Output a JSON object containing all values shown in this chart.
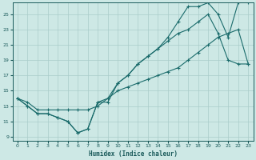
{
  "title": "",
  "xlabel": "Humidex (Indice chaleur)",
  "background_color": "#cde8e5",
  "grid_color": "#aaccca",
  "line_color": "#1a6b6b",
  "xlim": [
    -0.5,
    23.5
  ],
  "ylim": [
    8.5,
    26.5
  ],
  "xticks": [
    0,
    1,
    2,
    3,
    4,
    5,
    6,
    7,
    8,
    9,
    10,
    11,
    12,
    13,
    14,
    15,
    16,
    17,
    18,
    19,
    20,
    21,
    22,
    23
  ],
  "yticks": [
    9,
    11,
    13,
    15,
    17,
    19,
    21,
    23,
    25
  ],
  "line1_x": [
    0,
    1,
    2,
    3,
    4,
    5,
    6,
    7,
    8,
    9,
    10,
    11,
    12,
    13,
    14,
    15,
    16,
    17,
    18,
    19,
    20,
    21,
    22,
    23
  ],
  "line1_y": [
    14,
    13,
    12,
    12,
    11.5,
    11,
    9.5,
    10,
    13.5,
    14,
    16,
    17,
    18.5,
    19.5,
    20.5,
    21.5,
    22.5,
    23,
    24,
    25,
    22.5,
    19,
    18.5,
    18.5
  ],
  "line2_x": [
    0,
    1,
    2,
    3,
    4,
    5,
    6,
    7,
    8,
    9,
    10,
    11,
    12,
    13,
    14,
    15,
    16,
    17,
    18,
    19,
    20,
    21,
    22,
    23
  ],
  "line2_y": [
    14,
    13,
    12,
    12,
    11.5,
    11,
    9.5,
    10,
    13.5,
    13.5,
    16,
    17,
    18.5,
    19.5,
    20.5,
    22,
    24,
    26,
    26,
    26.5,
    25,
    22,
    26.5,
    26.5
  ],
  "line3_x": [
    0,
    1,
    2,
    3,
    4,
    5,
    6,
    7,
    8,
    9,
    10,
    11,
    12,
    13,
    14,
    15,
    16,
    17,
    18,
    19,
    20,
    21,
    22,
    23
  ],
  "line3_y": [
    14,
    13.5,
    12.5,
    12.5,
    12.5,
    12.5,
    12.5,
    12.5,
    13,
    14,
    15,
    15.5,
    16,
    16.5,
    17,
    17.5,
    18,
    19,
    20,
    21,
    22,
    22.5,
    23,
    18.5
  ]
}
